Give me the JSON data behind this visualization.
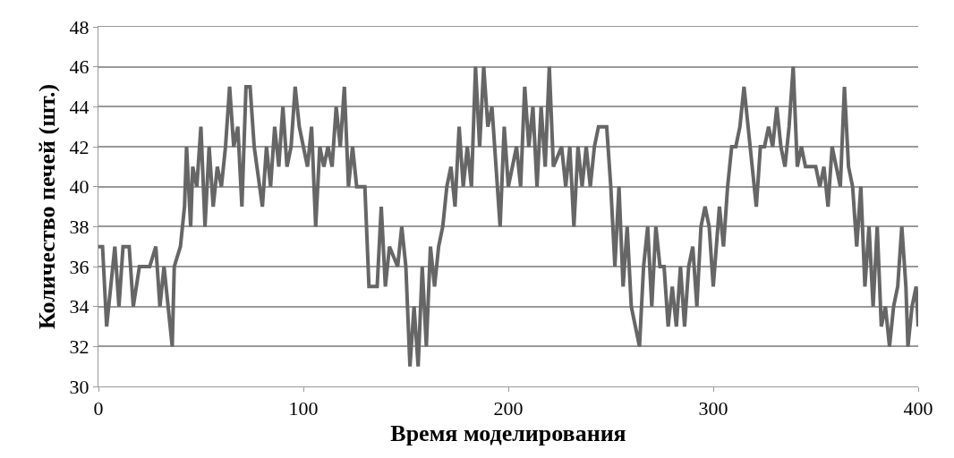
{
  "chart_data": {
    "type": "line",
    "xlabel": "Время моделирования",
    "ylabel": "Количество печей (шт.)",
    "x": [
      0,
      2,
      4,
      6,
      8,
      10,
      12,
      15,
      17,
      20,
      25,
      28,
      30,
      32,
      34,
      36,
      37,
      40,
      42,
      43,
      45,
      46,
      48,
      50,
      52,
      54,
      56,
      58,
      60,
      62,
      64,
      66,
      68,
      70,
      72,
      74,
      76,
      80,
      82,
      84,
      86,
      88,
      90,
      92,
      94,
      96,
      98,
      100,
      102,
      104,
      106,
      108,
      110,
      112,
      114,
      116,
      118,
      120,
      122,
      124,
      126,
      130,
      132,
      136,
      138,
      140,
      142,
      146,
      148,
      150,
      152,
      154,
      156,
      158,
      160,
      162,
      164,
      166,
      168,
      170,
      172,
      174,
      176,
      178,
      180,
      182,
      184,
      186,
      188,
      190,
      192,
      196,
      198,
      200,
      204,
      206,
      208,
      210,
      212,
      214,
      216,
      218,
      220,
      222,
      226,
      228,
      230,
      232,
      234,
      236,
      238,
      240,
      242,
      244,
      248,
      250,
      252,
      254,
      256,
      258,
      260,
      262,
      264,
      266,
      268,
      270,
      272,
      274,
      276,
      278,
      280,
      282,
      284,
      286,
      288,
      290,
      292,
      294,
      296,
      298,
      300,
      303,
      305,
      307,
      309,
      311,
      313,
      315,
      317,
      319,
      321,
      323,
      325,
      327,
      329,
      331,
      333,
      335,
      337,
      339,
      341,
      343,
      345,
      347,
      350,
      352,
      354,
      356,
      358,
      360,
      362,
      364,
      366,
      368,
      370,
      372,
      374,
      376,
      378,
      380,
      382,
      384,
      386,
      388,
      390,
      392,
      394,
      395,
      397,
      399,
      400
    ],
    "series": [
      {
        "color": "#666666",
        "values": [
          37,
          37,
          33,
          35,
          37,
          34,
          37,
          37,
          34,
          36,
          36,
          37,
          34,
          36,
          34,
          32,
          36,
          37,
          39,
          42,
          38,
          41,
          40,
          43,
          38,
          42,
          39,
          41,
          40,
          42,
          45,
          42,
          43,
          39,
          45,
          45,
          42,
          39,
          42,
          40,
          43,
          41,
          44,
          41,
          42,
          45,
          43,
          42,
          41,
          43,
          38,
          42,
          41,
          42,
          41,
          44,
          42,
          45,
          40,
          42,
          40,
          40,
          35,
          35,
          39,
          35,
          37,
          36,
          38,
          36,
          31,
          34,
          31,
          36,
          32,
          37,
          35,
          37,
          38,
          40,
          41,
          39,
          43,
          40,
          42,
          40,
          46,
          42,
          46,
          43,
          44,
          38,
          43,
          40,
          42,
          40,
          45,
          42,
          44,
          40,
          44,
          41,
          46,
          41,
          42,
          40,
          42,
          38,
          42,
          40,
          42,
          40,
          42,
          43,
          43,
          40,
          36,
          40,
          35,
          38,
          34,
          33,
          32,
          36,
          38,
          34,
          38,
          36,
          36,
          33,
          35,
          33,
          36,
          33,
          36,
          37,
          34,
          38,
          39,
          38,
          35,
          39,
          37,
          40,
          42,
          42,
          43,
          45,
          43,
          41,
          39,
          42,
          42,
          43,
          42,
          44,
          42,
          41,
          43,
          46,
          41,
          42,
          41,
          41,
          41,
          40,
          41,
          39,
          42,
          41,
          40,
          45,
          41,
          40,
          37,
          40,
          35,
          38,
          34,
          38,
          33,
          34,
          32,
          34,
          35,
          38,
          35,
          32,
          34,
          35,
          33
        ]
      }
    ],
    "xlim": [
      0,
      400
    ],
    "xticks": [
      0,
      100,
      200,
      300,
      400
    ],
    "ylim": [
      30,
      48
    ],
    "yticks": [
      30,
      32,
      34,
      36,
      38,
      40,
      42,
      44,
      46,
      48
    ],
    "grid": "y",
    "marker": "none",
    "line_style": "solid"
  }
}
